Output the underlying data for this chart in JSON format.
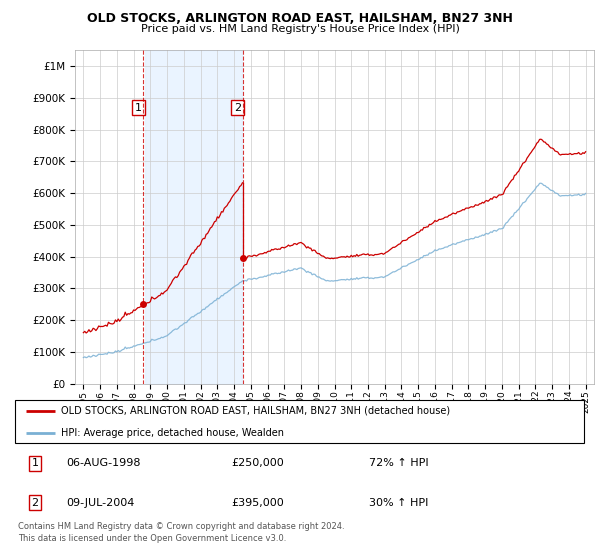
{
  "title": "OLD STOCKS, ARLINGTON ROAD EAST, HAILSHAM, BN27 3NH",
  "subtitle": "Price paid vs. HM Land Registry's House Price Index (HPI)",
  "legend_line1": "OLD STOCKS, ARLINGTON ROAD EAST, HAILSHAM, BN27 3NH (detached house)",
  "legend_line2": "HPI: Average price, detached house, Wealden",
  "sale1_date": "06-AUG-1998",
  "sale1_price": "£250,000",
  "sale1_hpi": "72% ↑ HPI",
  "sale1_year": 1998.59,
  "sale1_value": 250000,
  "sale2_date": "09-JUL-2004",
  "sale2_price": "£395,000",
  "sale2_hpi": "30% ↑ HPI",
  "sale2_year": 2004.52,
  "sale2_value": 395000,
  "footer": "Contains HM Land Registry data © Crown copyright and database right 2024.\nThis data is licensed under the Open Government Licence v3.0.",
  "red_color": "#cc0000",
  "blue_color": "#7ab0d4",
  "background_color": "#ffffff",
  "grid_color": "#cccccc",
  "shade_color": "#ddeeff",
  "ylim_min": 0,
  "ylim_max": 1050000,
  "xlim_min": 1994.5,
  "xlim_max": 2025.5
}
